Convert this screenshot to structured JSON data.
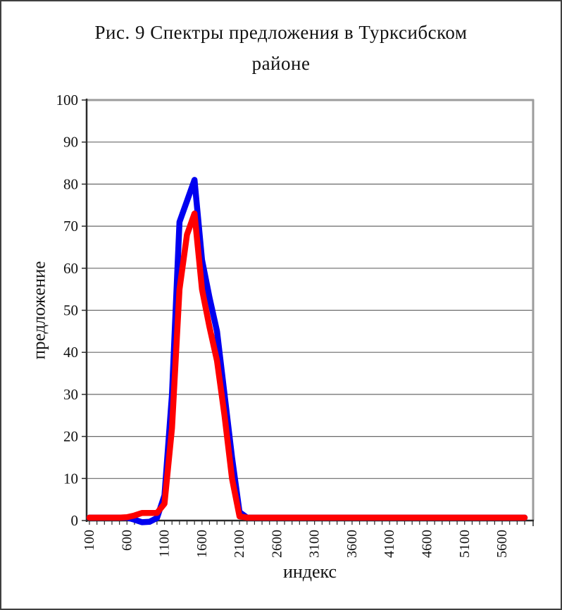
{
  "figure": {
    "title_line1": "Рис. 9 Спектры предложения в Турксибском",
    "title_line2": "районе"
  },
  "chart_data": {
    "type": "line",
    "title": "Рис. 9 Спектры предложения в Турксибском районе",
    "xlabel": "индекс",
    "ylabel": "предложение",
    "x_start": 100,
    "x_step": 100,
    "x_end": 5900,
    "x_tick_labels": [
      "100",
      "600",
      "1100",
      "1600",
      "2100",
      "2600",
      "3100",
      "3600",
      "4100",
      "4600",
      "5100",
      "5600"
    ],
    "ylim": [
      0,
      100
    ],
    "y_tick_step": 10,
    "grid": "horizontal-only",
    "legend": "none",
    "series": [
      {
        "name": "blue",
        "color": "#0000f0",
        "values": [
          0.7,
          0.7,
          0.7,
          0.7,
          0.7,
          0.7,
          0.2,
          -0.4,
          -0.3,
          0.6,
          6,
          30,
          71,
          76,
          81,
          62,
          53,
          45,
          30,
          15,
          2,
          0.7,
          0.7,
          0.7,
          0.7,
          0.7,
          0.7,
          0.7,
          0.7,
          0.7,
          0.7,
          0.7,
          0.7,
          0.7,
          0.7,
          0.7,
          0.7,
          0.7,
          0.7,
          0.7,
          0.7,
          0.7,
          0.7,
          0.7,
          0.7,
          0.7,
          0.7,
          0.7,
          0.7,
          0.7,
          0.7,
          0.7,
          0.7,
          0.7,
          0.7,
          0.7,
          0.7,
          0.7,
          0.7
        ]
      },
      {
        "name": "red",
        "color": "#ff0000",
        "values": [
          0.7,
          0.7,
          0.7,
          0.7,
          0.7,
          0.8,
          1.2,
          1.8,
          1.8,
          1.8,
          4,
          22,
          55,
          68,
          73,
          55,
          46,
          38,
          25,
          10,
          1,
          0.7,
          0.7,
          0.7,
          0.7,
          0.7,
          0.7,
          0.7,
          0.7,
          0.7,
          0.7,
          0.7,
          0.7,
          0.7,
          0.7,
          0.7,
          0.7,
          0.7,
          0.7,
          0.7,
          0.7,
          0.7,
          0.7,
          0.7,
          0.7,
          0.7,
          0.7,
          0.7,
          0.7,
          0.7,
          0.7,
          0.7,
          0.7,
          0.7,
          0.7,
          0.7,
          0.7,
          0.7,
          0.7
        ]
      }
    ]
  },
  "style_colors": {
    "axis": "#2b2b2b",
    "gridline": "#6a6a6a",
    "plot_border": "#9c9c9c",
    "text": "#111111"
  }
}
